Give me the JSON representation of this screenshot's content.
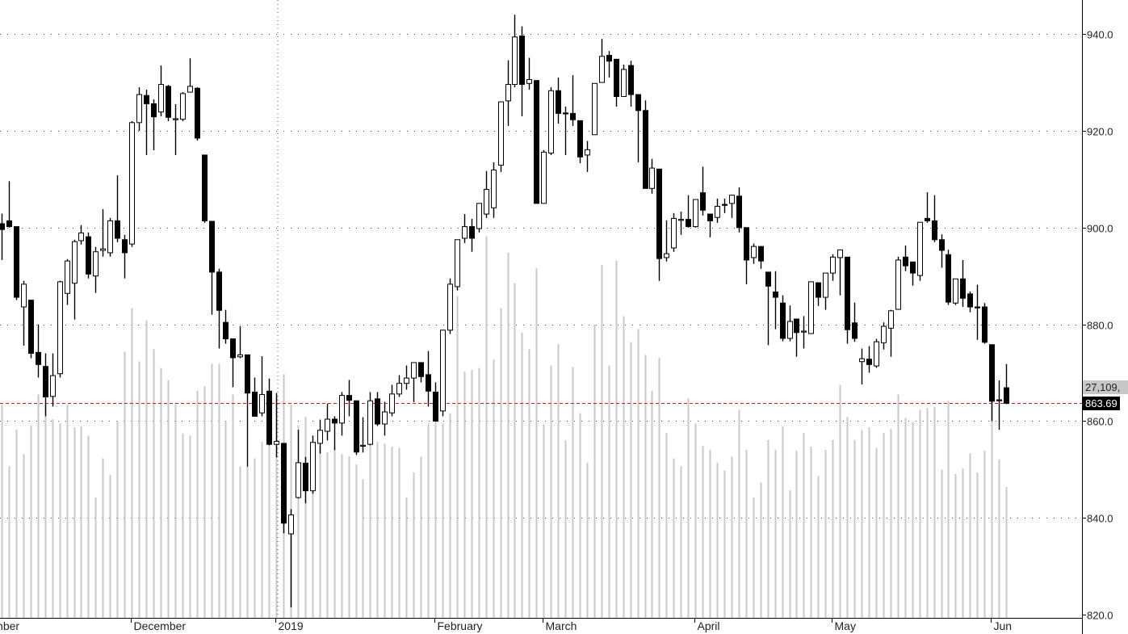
{
  "chart_data": {
    "type": "candlestick",
    "title": "",
    "columns": [
      "open",
      "high",
      "low",
      "close",
      "volume"
    ],
    "ylim": [
      820,
      945
    ],
    "y_ticks": [
      "820.0",
      "840.0",
      "860.0",
      "880.0",
      "900.0",
      "920.0",
      "940.0"
    ],
    "y_tick_values": [
      820,
      840,
      860,
      880,
      900,
      920,
      940
    ],
    "grid": "dotted",
    "colors": {
      "up_body": "#ffffff",
      "down_body": "#000000",
      "wick": "#000000",
      "volume": "#c8c8c8",
      "last_price_line": "#e0141e",
      "grid": "#555555"
    },
    "month_labels": [
      {
        "label": "November",
        "start_index": -5
      },
      {
        "label": "December",
        "start_index": 18
      },
      {
        "label": "2019",
        "start_index": 38
      },
      {
        "label": "February",
        "start_index": 60
      },
      {
        "label": "March",
        "start_index": 75
      },
      {
        "label": "April",
        "start_index": 96
      },
      {
        "label": "May",
        "start_index": 115
      },
      {
        "label": "Jun",
        "start_index": 137
      }
    ],
    "last_price": 863.69,
    "last_price_label": "863.69",
    "last_volume_label": "27,109,",
    "ohlcv": [
      [
        900.8,
        902.9,
        893.3,
        899.6,
        44600
      ],
      [
        901.4,
        909.6,
        900.0,
        900.2,
        31500
      ],
      [
        900.2,
        900.2,
        885.0,
        885.6,
        39300
      ],
      [
        883.6,
        889.0,
        875.6,
        888.3,
        34100
      ],
      [
        885.0,
        885.0,
        873.0,
        874.0,
        40200
      ],
      [
        874.2,
        880.0,
        869.0,
        871.7,
        46800
      ],
      [
        871.3,
        874.0,
        861.0,
        865.0,
        44600
      ],
      [
        865.1,
        874.0,
        863.0,
        869.4,
        41500
      ],
      [
        869.8,
        889.0,
        869.0,
        888.8,
        40600
      ],
      [
        886.4,
        893.5,
        884.0,
        893.1,
        44600
      ],
      [
        888.5,
        897.5,
        881.0,
        897.1,
        39800
      ],
      [
        897.3,
        900.5,
        896.5,
        898.9,
        40000
      ],
      [
        898.1,
        899.0,
        889.5,
        890.4,
        38000
      ],
      [
        890.0,
        896.0,
        886.5,
        895.0,
        24900
      ],
      [
        895.3,
        903.8,
        894.0,
        895.6,
        33200
      ],
      [
        894.8,
        902.0,
        894.0,
        901.4,
        29700
      ],
      [
        901.4,
        910.8,
        897.0,
        897.8,
        41100
      ],
      [
        897.5,
        898.5,
        889.5,
        894.8,
        55900
      ],
      [
        896.6,
        922.0,
        896.0,
        921.7,
        65100
      ],
      [
        921.7,
        929.0,
        920.0,
        927.5,
        53800
      ],
      [
        927.3,
        928.5,
        915.0,
        925.6,
        62500
      ],
      [
        925.6,
        926.5,
        916.0,
        922.9,
        56400
      ],
      [
        923.9,
        933.5,
        923.0,
        929.6,
        52400
      ],
      [
        929.2,
        929.5,
        922.0,
        922.8,
        49800
      ],
      [
        922.4,
        925.5,
        915.0,
        922.5,
        44600
      ],
      [
        922.4,
        928.0,
        922.0,
        927.7,
        38500
      ],
      [
        928.0,
        935.0,
        928.0,
        929.2,
        38000
      ],
      [
        928.8,
        929.0,
        918.0,
        918.5,
        47600
      ],
      [
        915.0,
        915.0,
        901.0,
        901.4,
        48500
      ],
      [
        901.3,
        901.3,
        882.0,
        890.8,
        53300
      ],
      [
        890.8,
        891.5,
        875.0,
        882.9,
        53300
      ],
      [
        880.4,
        883.0,
        876.0,
        877.0,
        41100
      ],
      [
        877.0,
        877.0,
        867.0,
        873.1,
        46800
      ],
      [
        873.3,
        879.6,
        873.0,
        873.7,
        31500
      ],
      [
        873.7,
        873.7,
        850.6,
        865.8,
        31500
      ],
      [
        866.0,
        869.0,
        861.0,
        861.0,
        33200
      ],
      [
        861.7,
        873.4,
        861.0,
        865.5,
        36700
      ],
      [
        866.2,
        868.8,
        855.0,
        855.2,
        36700
      ],
      [
        855.2,
        865.8,
        852.5,
        855.8,
        46300
      ],
      [
        855.4,
        855.4,
        836.8,
        838.9,
        51100
      ],
      [
        836.7,
        841.8,
        821.5,
        840.6,
        44600
      ],
      [
        844.2,
        858.2,
        844.0,
        851.4,
        40200
      ],
      [
        851.3,
        852.6,
        843.0,
        845.6,
        42000
      ],
      [
        845.6,
        857.0,
        845.0,
        855.6,
        35800
      ],
      [
        855.4,
        860.3,
        853.3,
        858.1,
        35800
      ],
      [
        857.9,
        863.6,
        856.0,
        860.4,
        34500
      ],
      [
        860.4,
        861.0,
        854.0,
        859.6,
        35800
      ],
      [
        859.6,
        866.0,
        857.0,
        865.3,
        34100
      ],
      [
        865.3,
        868.5,
        861.0,
        864.3,
        33600
      ],
      [
        864.2,
        864.2,
        853.0,
        853.6,
        31900
      ],
      [
        855.0,
        860.8,
        853.5,
        855.0,
        28800
      ],
      [
        855.2,
        866.0,
        855.0,
        864.2,
        36300
      ],
      [
        864.6,
        866.0,
        859.0,
        859.4,
        36700
      ],
      [
        859.4,
        864.0,
        857.0,
        861.9,
        36300
      ],
      [
        861.7,
        867.5,
        861.0,
        865.6,
        35700
      ],
      [
        865.6,
        869.5,
        865.0,
        867.8,
        35400
      ],
      [
        867.8,
        871.5,
        866.5,
        868.9,
        24900
      ],
      [
        868.9,
        872.1,
        863.9,
        872.1,
        30200
      ],
      [
        872.1,
        872.1,
        868.0,
        869.2,
        33600
      ],
      [
        869.6,
        874.5,
        863.0,
        866.2,
        40600
      ],
      [
        866.0,
        868.0,
        860.0,
        860.0,
        41500
      ],
      [
        862.1,
        878.8,
        861.0,
        878.8,
        40600
      ],
      [
        878.8,
        889.5,
        878.0,
        888.3,
        42800
      ],
      [
        887.8,
        897.5,
        887.0,
        897.5,
        67700
      ],
      [
        897.8,
        902.8,
        896.8,
        900.2,
        51600
      ],
      [
        900.2,
        901.8,
        895.0,
        897.8,
        52000
      ],
      [
        899.8,
        905.0,
        899.0,
        905.0,
        52400
      ],
      [
        902.8,
        911.7,
        902.0,
        907.9,
        80400
      ],
      [
        904.1,
        913.5,
        902.0,
        911.9,
        54200
      ],
      [
        912.9,
        926.0,
        911.5,
        926.0,
        65100
      ],
      [
        926.2,
        934.6,
        921.0,
        929.6,
        76900
      ],
      [
        929.6,
        944.0,
        929.0,
        939.4,
        70400
      ],
      [
        939.6,
        941.6,
        923.0,
        929.6,
        59900
      ],
      [
        929.8,
        935.1,
        928.5,
        930.6,
        56400
      ],
      [
        930.4,
        930.4,
        905.0,
        905.0,
        73600
      ],
      [
        905.0,
        916.0,
        905.0,
        915.6,
        40400
      ],
      [
        915.4,
        929.0,
        915.0,
        928.3,
        52900
      ],
      [
        928.3,
        931.0,
        921.5,
        923.6,
        57500
      ],
      [
        923.7,
        925.0,
        915.0,
        923.5,
        37000
      ],
      [
        923.6,
        931.5,
        921.0,
        922.3,
        52600
      ],
      [
        922.1,
        922.1,
        913.3,
        914.6,
        42800
      ],
      [
        915.0,
        917.9,
        911.5,
        916.1,
        32300
      ],
      [
        919.2,
        929.8,
        919.2,
        929.8,
        61600
      ],
      [
        930.0,
        939.0,
        930.0,
        935.4,
        74300
      ],
      [
        935.6,
        936.5,
        931.0,
        934.4,
        52900
      ],
      [
        934.8,
        934.8,
        925.0,
        927.1,
        75200
      ],
      [
        927.1,
        933.7,
        927.0,
        932.7,
        63400
      ],
      [
        933.5,
        934.5,
        925.0,
        927.5,
        57900
      ],
      [
        927.5,
        927.5,
        913.5,
        924.2,
        60700
      ],
      [
        924.2,
        926.3,
        908.0,
        908.1,
        55200
      ],
      [
        908.1,
        914.2,
        907.0,
        912.3,
        47600
      ],
      [
        912.1,
        912.1,
        889.0,
        893.6,
        54600
      ],
      [
        893.8,
        901.5,
        893.0,
        894.6,
        38600
      ],
      [
        895.8,
        903.0,
        895.0,
        901.9,
        33200
      ],
      [
        901.7,
        903.3,
        898.5,
        901.7,
        31500
      ],
      [
        901.7,
        906.7,
        900.0,
        900.2,
        45900
      ],
      [
        900.2,
        905.8,
        900.0,
        905.8,
        40600
      ],
      [
        907.2,
        912.6,
        902.5,
        903.6,
        35800
      ],
      [
        902.8,
        902.8,
        898.0,
        901.4,
        35000
      ],
      [
        902.1,
        906.0,
        901.0,
        904.4,
        32300
      ],
      [
        904.8,
        906.0,
        903.0,
        904.7,
        30600
      ],
      [
        905.0,
        906.8,
        902.0,
        906.7,
        33600
      ],
      [
        906.5,
        908.3,
        899.0,
        900.0,
        43500
      ],
      [
        900.0,
        900.0,
        888.3,
        893.3,
        35000
      ],
      [
        893.8,
        896.7,
        892.5,
        896.1,
        24900
      ],
      [
        896.1,
        896.1,
        891.5,
        893.1,
        28100
      ],
      [
        890.8,
        890.8,
        875.7,
        887.9,
        37100
      ],
      [
        886.7,
        891.0,
        879.0,
        885.6,
        35000
      ],
      [
        884.4,
        886.0,
        876.5,
        877.1,
        40000
      ],
      [
        877.1,
        883.9,
        876.5,
        880.6,
        26400
      ],
      [
        881.1,
        881.1,
        873.3,
        878.3,
        34800
      ],
      [
        878.6,
        881.7,
        875.0,
        878.6,
        38600
      ],
      [
        878.1,
        888.8,
        878.0,
        888.8,
        35700
      ],
      [
        888.6,
        888.6,
        883.8,
        885.6,
        29500
      ],
      [
        885.6,
        890.6,
        883.0,
        890.6,
        35000
      ],
      [
        890.6,
        894.5,
        889.0,
        893.9,
        37100
      ],
      [
        893.8,
        895.4,
        886.0,
        895.4,
        48800
      ],
      [
        893.9,
        893.9,
        876.0,
        878.9,
        42000
      ],
      [
        880.3,
        884.5,
        876.4,
        877.1,
        37100
      ],
      [
        872.3,
        875.0,
        867.6,
        872.9,
        39200
      ],
      [
        872.8,
        875.5,
        870.0,
        871.7,
        39800
      ],
      [
        871.4,
        877.0,
        871.0,
        876.4,
        35400
      ],
      [
        876.2,
        880.4,
        874.8,
        879.6,
        38600
      ],
      [
        879.2,
        883.0,
        873.3,
        882.8,
        39500
      ],
      [
        883.1,
        894.0,
        883.0,
        893.3,
        46800
      ],
      [
        893.9,
        896.3,
        891.0,
        892.1,
        41800
      ],
      [
        892.9,
        892.9,
        888.0,
        890.6,
        40900
      ],
      [
        890.1,
        901.1,
        889.0,
        901.1,
        43500
      ],
      [
        901.9,
        907.3,
        901.0,
        901.4,
        43900
      ],
      [
        901.4,
        906.7,
        897.0,
        897.5,
        44100
      ],
      [
        897.5,
        898.6,
        891.7,
        895.3,
        30800
      ],
      [
        894.4,
        895.4,
        884.0,
        884.6,
        45400
      ],
      [
        884.4,
        889.4,
        884.0,
        889.4,
        29900
      ],
      [
        889.4,
        893.3,
        883.6,
        885.4,
        31000
      ],
      [
        886.3,
        886.8,
        882.5,
        883.6,
        34300
      ],
      [
        883.6,
        888.2,
        876.8,
        883.5,
        30200
      ],
      [
        883.6,
        884.4,
        876.0,
        876.3,
        34800
      ],
      [
        875.8,
        875.8,
        860.0,
        864.1,
        45400
      ],
      [
        864.4,
        868.4,
        858.2,
        864.2,
        33000
      ],
      [
        866.9,
        871.8,
        863.5,
        863.69,
        27109
      ]
    ]
  }
}
